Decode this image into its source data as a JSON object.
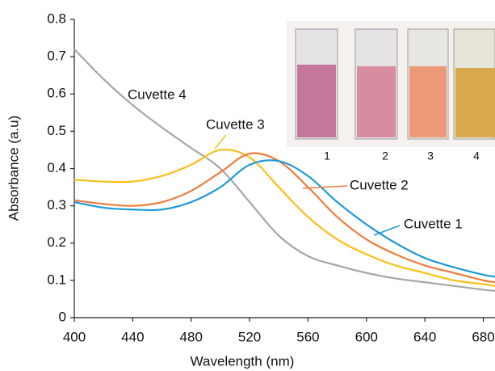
{
  "chart_data": {
    "type": "line",
    "x_label": "Wavelength (nm)",
    "y_label": "Absorbance (a.u)",
    "x": [
      400,
      420,
      440,
      460,
      480,
      500,
      520,
      540,
      560,
      580,
      600,
      620,
      640,
      660,
      680,
      688
    ],
    "series": [
      {
        "name": "Cuvette 1",
        "color": "#1f9ad6",
        "values": [
          0.31,
          0.295,
          0.29,
          0.29,
          0.31,
          0.35,
          0.41,
          0.42,
          0.38,
          0.31,
          0.25,
          0.2,
          0.16,
          0.135,
          0.115,
          0.11
        ]
      },
      {
        "name": "Cuvette 2",
        "color": "#f07c3a",
        "values": [
          0.315,
          0.305,
          0.3,
          0.31,
          0.34,
          0.39,
          0.44,
          0.42,
          0.35,
          0.27,
          0.21,
          0.17,
          0.14,
          0.12,
          0.1,
          0.095
        ]
      },
      {
        "name": "Cuvette 3",
        "color": "#fbbf1a",
        "values": [
          0.37,
          0.365,
          0.365,
          0.38,
          0.41,
          0.45,
          0.43,
          0.35,
          0.27,
          0.21,
          0.17,
          0.14,
          0.12,
          0.1,
          0.09,
          0.085
        ]
      },
      {
        "name": "Cuvette 4",
        "color": "#a6a6a6",
        "values": [
          0.72,
          0.64,
          0.57,
          0.51,
          0.455,
          0.4,
          0.31,
          0.22,
          0.165,
          0.14,
          0.12,
          0.105,
          0.095,
          0.085,
          0.075,
          0.072
        ]
      }
    ],
    "xlim": [
      400,
      688
    ],
    "xticks": [
      400,
      440,
      480,
      520,
      560,
      600,
      640,
      680
    ],
    "ylim": [
      0,
      0.8
    ],
    "yticks": [
      0,
      0.1,
      0.2,
      0.3,
      0.4,
      0.5,
      0.6,
      0.7,
      0.8
    ],
    "inset_labels": [
      "1",
      "2",
      "3",
      "4"
    ]
  }
}
